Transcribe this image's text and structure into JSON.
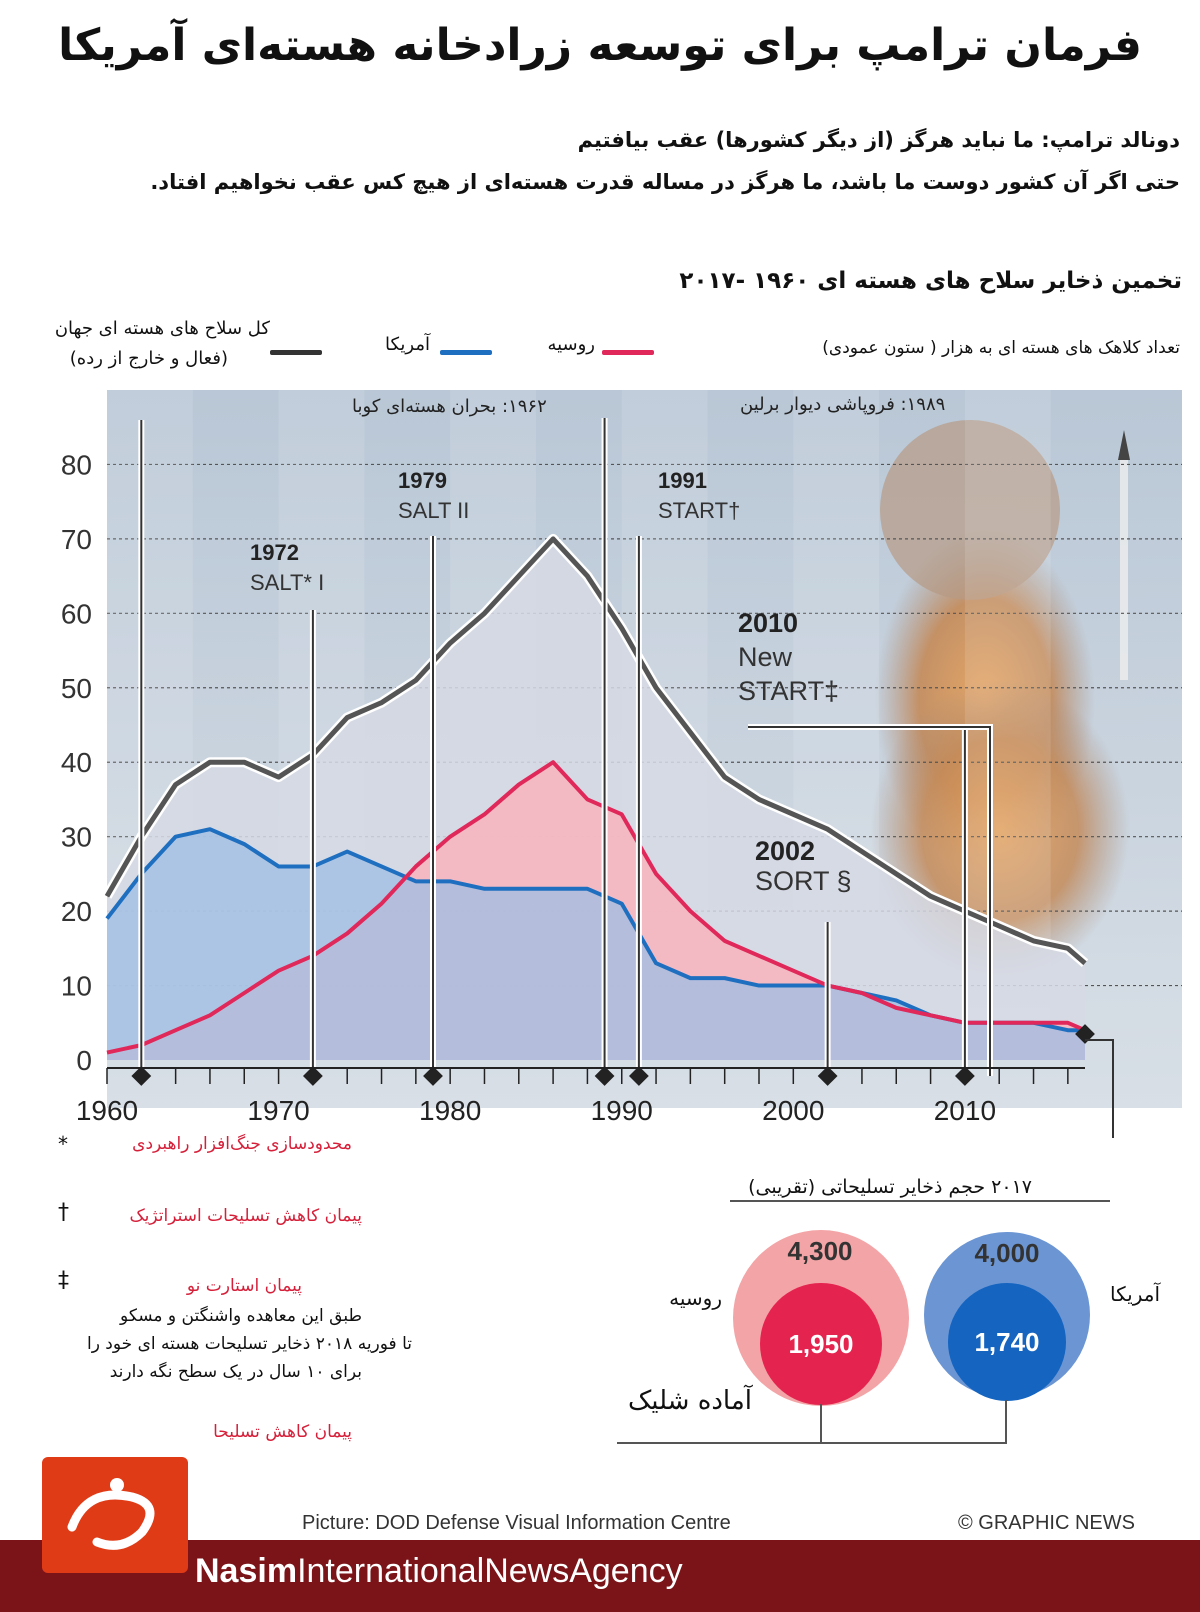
{
  "title": "فرمان ترامپ برای توسعه زرادخانه هسته‌ای آمریکا",
  "quote_line1": "دونالد ترامپ: ما نباید هرگز (از دیگر کشورها) عقب بیافتیم",
  "quote_line2": "حتی اگر آن کشور دوست ما باشد، ما هرگز در مساله قدرت هسته‌ای از هیچ کس عقب نخواهیم افتاد.",
  "chart_title": "تخمین ذخایر سلاح های هسته ای ۱۹۶۰ -۲۰۱۷",
  "legend": {
    "world_label": "کل سلاح های هسته ای جهان",
    "world_sub": "(فعال و خارج از رده)",
    "usa_label": "آمریکا",
    "russia_label": "روسیه",
    "unit_label": "تعداد کلاهک های هسته ای به هزار ( ستون عمودی)"
  },
  "colors": {
    "world": "#555555",
    "usa": "#1f6fc0",
    "russia": "#e0285a",
    "usa_fill": "#9fbde4",
    "russia_fill": "#f7b6bf",
    "world_fill": "#d6d9e4"
  },
  "chart_data": {
    "type": "line",
    "xlim": [
      1960,
      2017
    ],
    "ylim": [
      0,
      90
    ],
    "yticks": [
      0,
      10,
      20,
      30,
      40,
      50,
      60,
      70,
      80
    ],
    "xticks": [
      1960,
      1970,
      1980,
      1990,
      2000,
      2010
    ],
    "series": [
      {
        "key": "world",
        "x": [
          1960,
          1962,
          1964,
          1966,
          1968,
          1970,
          1972,
          1974,
          1976,
          1978,
          1980,
          1982,
          1984,
          1986,
          1988,
          1990,
          1992,
          1994,
          1996,
          1998,
          2000,
          2002,
          2004,
          2006,
          2008,
          2010,
          2012,
          2014,
          2016,
          2017
        ],
        "values": [
          22,
          30,
          37,
          40,
          40,
          38,
          41,
          46,
          48,
          51,
          56,
          60,
          65,
          70,
          65,
          58,
          50,
          44,
          38,
          35,
          33,
          31,
          28,
          25,
          22,
          20,
          18,
          16,
          15,
          13
        ]
      },
      {
        "key": "usa",
        "x": [
          1960,
          1962,
          1964,
          1966,
          1968,
          1970,
          1972,
          1974,
          1976,
          1978,
          1980,
          1982,
          1984,
          1986,
          1988,
          1990,
          1992,
          1994,
          1996,
          1998,
          2000,
          2002,
          2004,
          2006,
          2008,
          2010,
          2012,
          2014,
          2016,
          2017
        ],
        "values": [
          19,
          25,
          30,
          31,
          29,
          26,
          26,
          28,
          26,
          24,
          24,
          23,
          23,
          23,
          23,
          21,
          13,
          11,
          11,
          10,
          10,
          10,
          9,
          8,
          6,
          5,
          5,
          5,
          4,
          4
        ]
      },
      {
        "key": "russia",
        "x": [
          1960,
          1962,
          1964,
          1966,
          1968,
          1970,
          1972,
          1974,
          1976,
          1978,
          1980,
          1982,
          1984,
          1986,
          1988,
          1990,
          1992,
          1994,
          1996,
          1998,
          2000,
          2002,
          2004,
          2006,
          2008,
          2010,
          2012,
          2014,
          2016,
          2017
        ],
        "values": [
          1,
          2,
          4,
          6,
          9,
          12,
          14,
          17,
          21,
          26,
          30,
          33,
          37,
          40,
          35,
          33,
          25,
          20,
          16,
          14,
          12,
          10,
          9,
          7,
          6,
          5,
          5,
          5,
          5,
          4
        ]
      }
    ],
    "events": [
      {
        "year": 1962,
        "label": "۱۹۶۲: بحران هسته‌ای کوبا"
      },
      {
        "year": 1972,
        "year_label": "1972",
        "name": "SALT* I"
      },
      {
        "year": 1979,
        "year_label": "1979",
        "name": "SALT II"
      },
      {
        "year": 1989,
        "label": "۱۹۸۹: فروپاشی دیوار برلین"
      },
      {
        "year": 1991,
        "year_label": "1991",
        "name": "START†"
      },
      {
        "year": 2002,
        "year_label": "2002",
        "name": "SORT §"
      },
      {
        "year": 2010,
        "year_label": "2010",
        "name_line1": "New",
        "name_line2": "START‡"
      }
    ]
  },
  "stock_2017_label": "۲۰۱۷ حجم ذخایر تسلیحاتی (تقریبی)",
  "ready_label": "آماده شلیک",
  "stocks": {
    "russia": {
      "label": "روسیه",
      "total": "4,300",
      "ready": "1,950"
    },
    "usa": {
      "label": "آمریکا",
      "total": "4,000",
      "ready": "1,740"
    }
  },
  "footnotes": {
    "star_mark": "*",
    "star_text": "محدودسازی جنگ‌افزار راهبردی",
    "dagger_mark": "†",
    "dagger_text": "پیمان کاهش تسلیحات استراتژیک",
    "ddagger_mark": "‡",
    "ddagger_title": "پیمان استارت نو",
    "ddagger_line1": "طبق این معاهده واشنگتن و مسکو",
    "ddagger_line2": "تا فوریه ۲۰۱۸ ذخایر تسلیحات هسته ای خود را",
    "ddagger_line3": "برای ۱۰ سال در یک سطح نگه دارند",
    "section_text": "پیمان کاهش تسلیحا"
  },
  "credits": {
    "picture": "Picture: DOD Defense Visual Information Centre",
    "copyright": "© GRAPHIC NEWS"
  },
  "brand": {
    "bold": "Nasim",
    "rest": "InternationalNewsAgency"
  }
}
